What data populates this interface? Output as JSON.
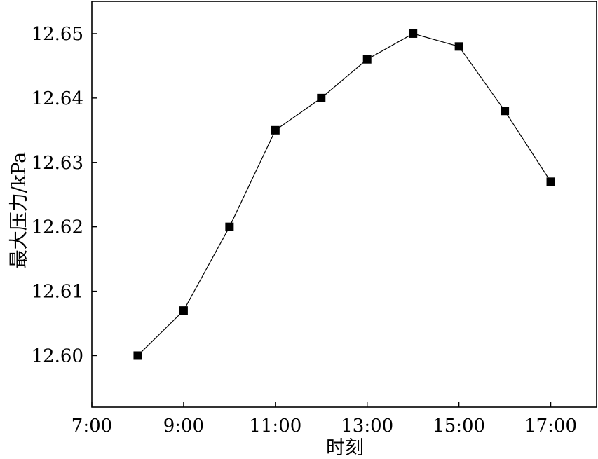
{
  "chart_data": {
    "type": "line",
    "xlabel": "时刻",
    "ylabel": "最大压力/kPa",
    "x_tick_labels": [
      "7:00",
      "9:00",
      "11:00",
      "13:00",
      "15:00",
      "17:00"
    ],
    "y_tick_labels": [
      "12.60",
      "12.61",
      "12.62",
      "12.63",
      "12.64",
      "12.65"
    ],
    "xlim": [
      "7:00",
      "18:00"
    ],
    "ylim": [
      12.592,
      12.655
    ],
    "grid": false,
    "marker": "square",
    "series": [
      {
        "x": [
          "8:00",
          "9:00",
          "10:00",
          "11:00",
          "12:00",
          "13:00",
          "14:00",
          "15:00",
          "16:00",
          "17:00"
        ],
        "y": [
          12.6,
          12.607,
          12.62,
          12.635,
          12.64,
          12.646,
          12.65,
          12.648,
          12.638,
          12.627
        ]
      }
    ],
    "colors": {
      "line": "#000000",
      "marker": "#000000",
      "axis": "#000000"
    }
  }
}
